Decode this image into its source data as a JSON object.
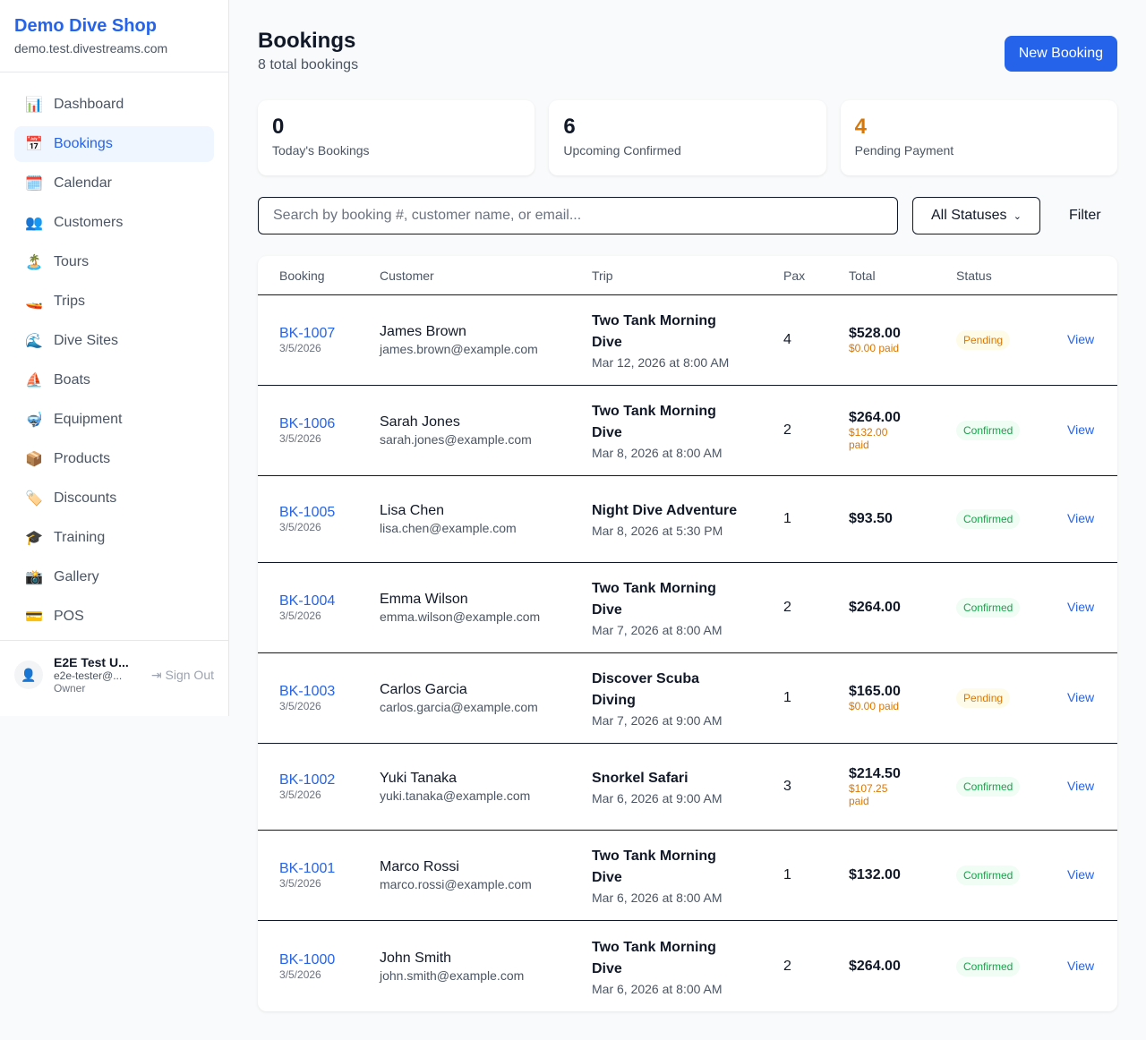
{
  "sidebar": {
    "shop_name": "Demo Dive Shop",
    "domain": "demo.test.divestreams.com",
    "items": [
      {
        "icon": "📊",
        "label": "Dashboard"
      },
      {
        "icon": "📅",
        "label": "Bookings",
        "active": true
      },
      {
        "icon": "🗓️",
        "label": "Calendar"
      },
      {
        "icon": "👥",
        "label": "Customers"
      },
      {
        "icon": "🏝️",
        "label": "Tours"
      },
      {
        "icon": "🚤",
        "label": "Trips"
      },
      {
        "icon": "🌊",
        "label": "Dive Sites"
      },
      {
        "icon": "⛵",
        "label": "Boats"
      },
      {
        "icon": "🤿",
        "label": "Equipment"
      },
      {
        "icon": "📦",
        "label": "Products"
      },
      {
        "icon": "🏷️",
        "label": "Discounts"
      },
      {
        "icon": "🎓",
        "label": "Training"
      },
      {
        "icon": "📸",
        "label": "Gallery"
      },
      {
        "icon": "💳",
        "label": "POS"
      }
    ],
    "user": {
      "name": "E2E Test U...",
      "email": "e2e-tester@...",
      "role": "Owner",
      "sign_out": "Sign Out"
    }
  },
  "header": {
    "title": "Bookings",
    "subtitle": "8 total bookings",
    "new_button": "New Booking"
  },
  "stats": [
    {
      "value": "0",
      "label": "Today's Bookings"
    },
    {
      "value": "6",
      "label": "Upcoming Confirmed"
    },
    {
      "value": "4",
      "label": "Pending Payment",
      "color": "#d97706"
    }
  ],
  "filters": {
    "search_placeholder": "Search by booking #, customer name, or email...",
    "search_value": "",
    "status": "All Statuses",
    "filter_label": "Filter"
  },
  "table": {
    "columns": [
      "Booking",
      "Customer",
      "Trip",
      "Pax",
      "Total",
      "Status",
      ""
    ],
    "rows": [
      {
        "id": "BK-1007",
        "date": "3/5/2026",
        "name": "James Brown",
        "email": "james.brown@example.com",
        "trip": "Two Tank Morning Dive",
        "when": "Mar 12, 2026 at 8:00 AM",
        "pax": "4",
        "total": "$528.00",
        "paid": "$0.00 paid",
        "status": "Pending",
        "action": "View"
      },
      {
        "id": "BK-1006",
        "date": "3/5/2026",
        "name": "Sarah Jones",
        "email": "sarah.jones@example.com",
        "trip": "Two Tank Morning Dive",
        "when": "Mar 8, 2026 at 8:00 AM",
        "pax": "2",
        "total": "$264.00",
        "paid": "$132.00 paid",
        "status": "Confirmed",
        "action": "View"
      },
      {
        "id": "BK-1005",
        "date": "3/5/2026",
        "name": "Lisa Chen",
        "email": "lisa.chen@example.com",
        "trip": "Night Dive Adventure",
        "when": "Mar 8, 2026 at 5:30 PM",
        "pax": "1",
        "total": "$93.50",
        "paid": "",
        "status": "Confirmed",
        "action": "View"
      },
      {
        "id": "BK-1004",
        "date": "3/5/2026",
        "name": "Emma Wilson",
        "email": "emma.wilson@example.com",
        "trip": "Two Tank Morning Dive",
        "when": "Mar 7, 2026 at 8:00 AM",
        "pax": "2",
        "total": "$264.00",
        "paid": "",
        "status": "Confirmed",
        "action": "View"
      },
      {
        "id": "BK-1003",
        "date": "3/5/2026",
        "name": "Carlos Garcia",
        "email": "carlos.garcia@example.com",
        "trip": "Discover Scuba Diving",
        "when": "Mar 7, 2026 at 9:00 AM",
        "pax": "1",
        "total": "$165.00",
        "paid": "$0.00 paid",
        "status": "Pending",
        "action": "View"
      },
      {
        "id": "BK-1002",
        "date": "3/5/2026",
        "name": "Yuki Tanaka",
        "email": "yuki.tanaka@example.com",
        "trip": "Snorkel Safari",
        "when": "Mar 6, 2026 at 9:00 AM",
        "pax": "3",
        "total": "$214.50",
        "paid": "$107.25 paid",
        "status": "Confirmed",
        "action": "View"
      },
      {
        "id": "BK-1001",
        "date": "3/5/2026",
        "name": "Marco Rossi",
        "email": "marco.rossi@example.com",
        "trip": "Two Tank Morning Dive",
        "when": "Mar 6, 2026 at 8:00 AM",
        "pax": "1",
        "total": "$132.00",
        "paid": "",
        "status": "Confirmed",
        "action": "View"
      },
      {
        "id": "BK-1000",
        "date": "3/5/2026",
        "name": "John Smith",
        "email": "john.smith@example.com",
        "trip": "Two Tank Morning Dive",
        "when": "Mar 6, 2026 at 8:00 AM",
        "pax": "2",
        "total": "$264.00",
        "paid": "",
        "status": "Confirmed",
        "action": "View"
      }
    ]
  }
}
